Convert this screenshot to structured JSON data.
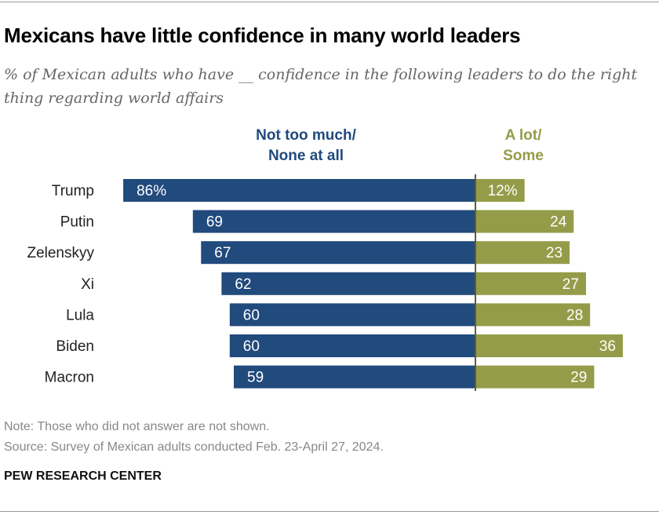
{
  "title": "Mexicans have little confidence in many world leaders",
  "subtitle": "% of Mexican adults who have __ confidence in the following leaders to do the right thing regarding world affairs",
  "note": "Note: Those who did not answer are not shown.",
  "source": "Source: Survey of Mexican adults conducted Feb. 23-April 27, 2024.",
  "brand": "PEW RESEARCH CENTER",
  "chart_data": {
    "type": "bar",
    "orientation": "horizontal-diverging",
    "categories": [
      "Trump",
      "Putin",
      "Zelenskyy",
      "Xi",
      "Lula",
      "Biden",
      "Macron"
    ],
    "series": [
      {
        "name": "Not too much/ None at all",
        "legend_lines": [
          "Not too much/",
          "None at all"
        ],
        "color": "#214a7d",
        "values": [
          86,
          69,
          67,
          62,
          60,
          60,
          59
        ],
        "labels": [
          "86%",
          "69",
          "67",
          "62",
          "60",
          "60",
          "59"
        ]
      },
      {
        "name": "A lot/ Some",
        "legend_lines": [
          "A lot/",
          "Some"
        ],
        "color": "#959c49",
        "values": [
          12,
          24,
          23,
          27,
          28,
          36,
          29
        ],
        "labels": [
          "12%",
          "24",
          "23",
          "27",
          "28",
          "36",
          "29"
        ]
      }
    ],
    "axis_color": "#5c6030"
  }
}
